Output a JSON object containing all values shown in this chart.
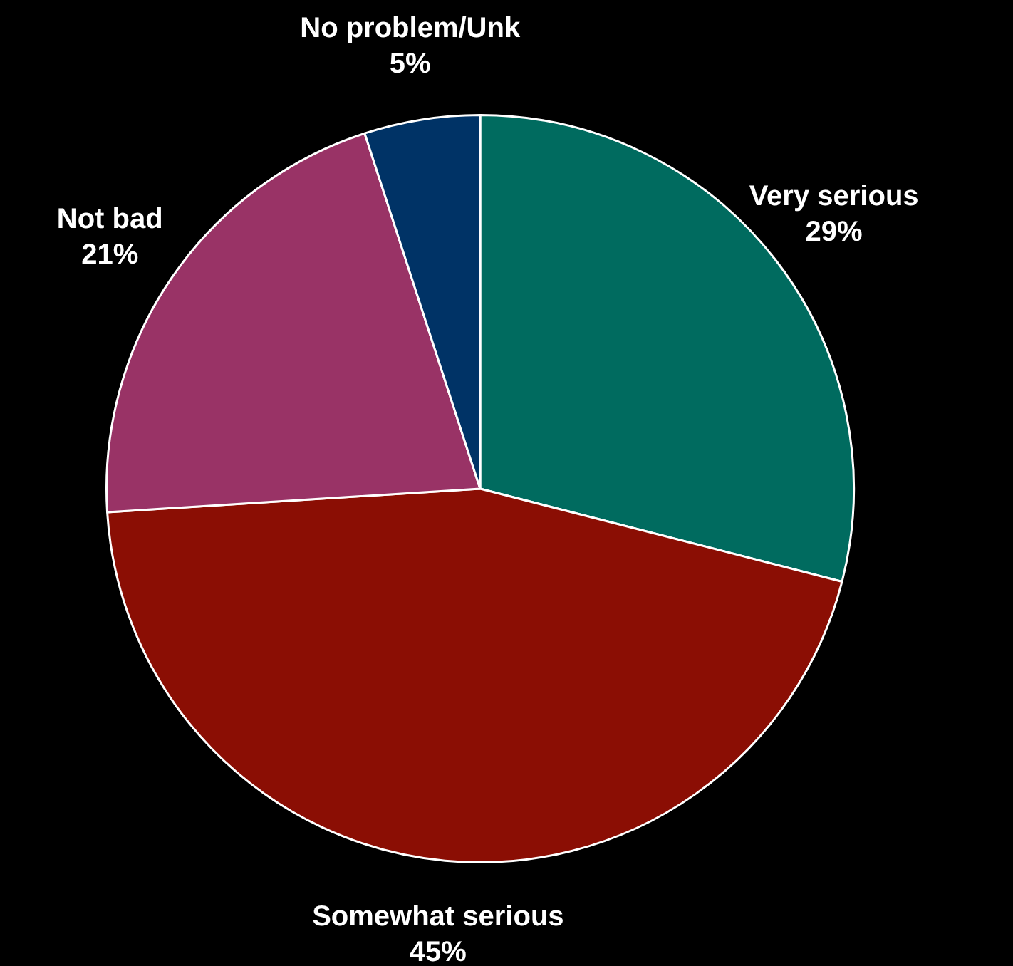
{
  "chart_data": {
    "type": "pie",
    "categories": [
      "Very serious",
      "Somewhat serious",
      "Not bad",
      "No problem/Unk"
    ],
    "values": [
      29,
      45,
      21,
      5
    ],
    "colors": [
      "#006b5f",
      "#8b0e04",
      "#993366",
      "#003366"
    ],
    "value_labels": [
      "29%",
      "45%",
      "21%",
      "5%"
    ],
    "legend": false
  }
}
